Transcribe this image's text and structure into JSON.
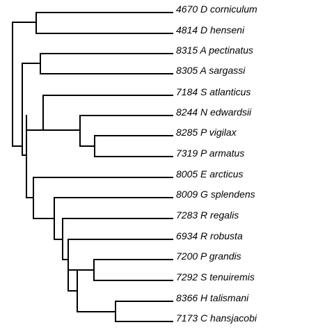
{
  "tree": {
    "leaves": [
      "4670 D corniculum",
      "4814 D henseni",
      "8315 A pectinatus",
      "8305 A sargassi",
      "7184 S atlanticus",
      "8244 N edwardsii",
      "8285 P vigilax",
      "7319 P armatus",
      "8005 E arcticus",
      "8009 G splendens",
      "7283 R regalis",
      "6934 R robusta",
      "7200 P grandis",
      "7292 S tenuiremis",
      "8366 H talismani",
      "7173 C hansjacobi"
    ]
  }
}
